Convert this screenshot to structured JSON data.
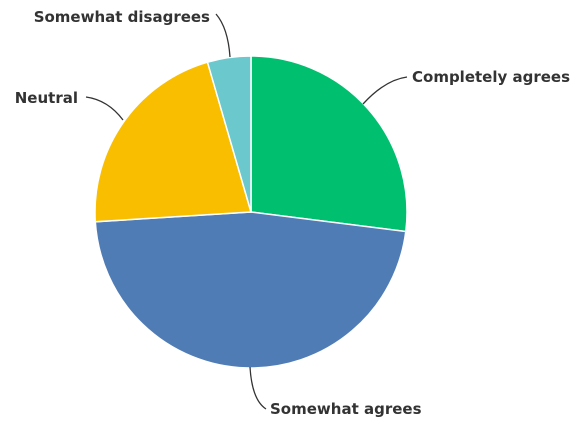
{
  "chart_data": {
    "type": "pie",
    "title": "",
    "start_angle_deg": 0,
    "direction": "clockwise",
    "slices": [
      {
        "label": "Completely agrees",
        "value": 27,
        "color": "#00bf6f"
      },
      {
        "label": "Somewhat agrees",
        "value": 47,
        "color": "#507cb6"
      },
      {
        "label": "Neutral",
        "value": 21.5,
        "color": "#f9be00"
      },
      {
        "label": "Somewhat disagrees",
        "value": 4.5,
        "color": "#6bc8cd"
      }
    ]
  }
}
